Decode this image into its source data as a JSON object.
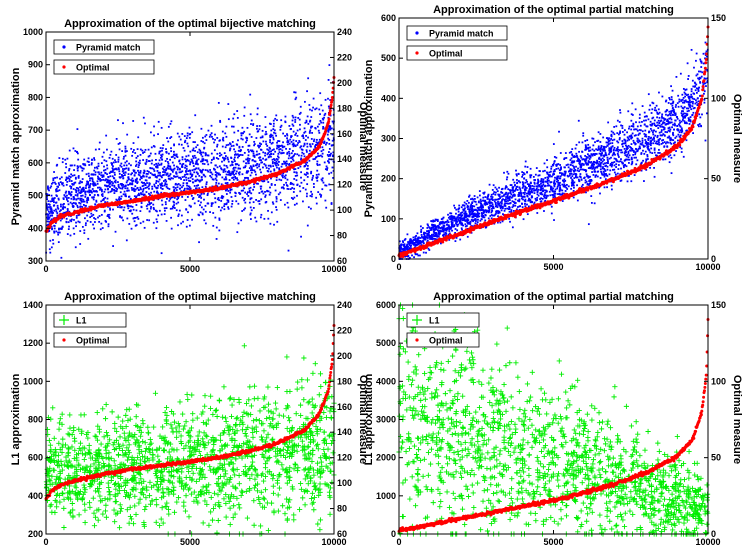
{
  "chart_data": [
    {
      "type": "scatter",
      "title": "Approximation of the optimal bijective matching",
      "xlabel": "",
      "ylabel": "Pyramid match approximation",
      "y2label": "Optimal measure",
      "xlim": [
        0,
        10000
      ],
      "ylim": [
        300,
        1000
      ],
      "y2lim": [
        60,
        240
      ],
      "x_ticks": [
        "0",
        "5000",
        "10000"
      ],
      "y_ticks": [
        "300",
        "400",
        "500",
        "600",
        "700",
        "800",
        "900",
        "1000"
      ],
      "y2_ticks": [
        "60",
        "80",
        "100",
        "120",
        "140",
        "160",
        "180",
        "200",
        "220",
        "240"
      ],
      "legend_position": "top-left",
      "legend": [
        "Pyramid match",
        "Optimal"
      ],
      "series": [
        {
          "name": "Pyramid match",
          "axis": "left",
          "color": "#0000ff",
          "marker": "dot",
          "points": [
            [
              0,
              450
            ],
            [
              1000,
              510
            ],
            [
              2000,
              525
            ],
            [
              3000,
              540
            ],
            [
              4000,
              550
            ],
            [
              5000,
              560
            ],
            [
              6000,
              570
            ],
            [
              7000,
              585
            ],
            [
              8000,
              600
            ],
            [
              9000,
              630
            ],
            [
              10000,
              690
            ]
          ],
          "spread": [
            [
              0,
              55
            ],
            [
              5000,
              70
            ],
            [
              10000,
              85
            ]
          ]
        },
        {
          "name": "Optimal",
          "axis": "right",
          "color": "#ff0000",
          "marker": "dot",
          "points": [
            [
              0,
              83
            ],
            [
              200,
              90
            ],
            [
              500,
              95
            ],
            [
              1000,
              98
            ],
            [
              2000,
              104
            ],
            [
              3000,
              107
            ],
            [
              4000,
              111
            ],
            [
              5000,
              114
            ],
            [
              6000,
              117
            ],
            [
              7000,
              122
            ],
            [
              8000,
              128
            ],
            [
              9000,
              139
            ],
            [
              9500,
              150
            ],
            [
              9800,
              168
            ],
            [
              9950,
              190
            ],
            [
              10000,
              205
            ]
          ]
        }
      ]
    },
    {
      "type": "scatter",
      "title": "Approximation of the optimal partial matching",
      "xlabel": "",
      "ylabel": "Pyramid match approximation",
      "y2label": "Optimal measure",
      "xlim": [
        0,
        10000
      ],
      "ylim": [
        0,
        600
      ],
      "y2lim": [
        0,
        150
      ],
      "x_ticks": [
        "0",
        "5000",
        "10000"
      ],
      "y_ticks": [
        "0",
        "100",
        "200",
        "300",
        "400",
        "500",
        "600"
      ],
      "y2_ticks": [
        "0",
        "50",
        "100",
        "150"
      ],
      "legend_position": "top-left",
      "legend": [
        "Pyramid match",
        "Optimal"
      ],
      "series": [
        {
          "name": "Pyramid match",
          "axis": "left",
          "color": "#0000ff",
          "marker": "dot",
          "points": [
            [
              0,
              15
            ],
            [
              1000,
              60
            ],
            [
              2000,
              100
            ],
            [
              3000,
              135
            ],
            [
              4000,
              165
            ],
            [
              5000,
              195
            ],
            [
              6000,
              230
            ],
            [
              7000,
              265
            ],
            [
              8000,
              300
            ],
            [
              9000,
              345
            ],
            [
              9700,
              410
            ],
            [
              10000,
              470
            ]
          ],
          "spread": [
            [
              0,
              12
            ],
            [
              5000,
              30
            ],
            [
              10000,
              45
            ]
          ]
        },
        {
          "name": "Optimal",
          "axis": "right",
          "color": "#ff0000",
          "marker": "dot",
          "points": [
            [
              0,
              2
            ],
            [
              1000,
              9
            ],
            [
              2000,
              16
            ],
            [
              3000,
              23
            ],
            [
              4000,
              30
            ],
            [
              5000,
              36
            ],
            [
              6000,
              43
            ],
            [
              7000,
              50
            ],
            [
              8000,
              58
            ],
            [
              9000,
              70
            ],
            [
              9500,
              82
            ],
            [
              9800,
              100
            ],
            [
              9950,
              125
            ],
            [
              10000,
              145
            ]
          ]
        }
      ]
    },
    {
      "type": "scatter",
      "title": "Approximation of the optimal bijective matching",
      "xlabel": "",
      "ylabel": "L1 approximation",
      "y2label": "Optimal measure",
      "xlim": [
        0,
        10000
      ],
      "ylim": [
        200,
        1400
      ],
      "y2lim": [
        60,
        240
      ],
      "x_ticks": [
        "0",
        "5000",
        "10000"
      ],
      "y_ticks": [
        "200",
        "400",
        "600",
        "800",
        "1000",
        "1200",
        "1400"
      ],
      "y2_ticks": [
        "60",
        "80",
        "100",
        "120",
        "140",
        "160",
        "180",
        "200",
        "220",
        "240"
      ],
      "legend_position": "top-left",
      "legend": [
        "L1",
        "Optimal"
      ],
      "series": [
        {
          "name": "L1",
          "axis": "left",
          "color": "#00ee00",
          "marker": "plus",
          "points": [
            [
              0,
              520
            ],
            [
              2000,
              545
            ],
            [
              4000,
              560
            ],
            [
              6000,
              580
            ],
            [
              8000,
              610
            ],
            [
              9500,
              660
            ],
            [
              10000,
              740
            ]
          ],
          "spread": [
            [
              0,
              120
            ],
            [
              5000,
              160
            ],
            [
              10000,
              190
            ]
          ]
        },
        {
          "name": "Optimal",
          "axis": "right",
          "color": "#ff0000",
          "marker": "dot",
          "points": [
            [
              0,
              88
            ],
            [
              200,
              94
            ],
            [
              500,
              98
            ],
            [
              1000,
              102
            ],
            [
              2000,
              107
            ],
            [
              3000,
              111
            ],
            [
              4000,
              114
            ],
            [
              5000,
              117
            ],
            [
              6000,
              120
            ],
            [
              7000,
              125
            ],
            [
              8000,
              131
            ],
            [
              9000,
              142
            ],
            [
              9500,
              155
            ],
            [
              9800,
              172
            ],
            [
              9950,
              198
            ],
            [
              10000,
              224
            ]
          ]
        }
      ]
    },
    {
      "type": "scatter",
      "title": "Approximation of the optimal partial matching",
      "xlabel": "",
      "ylabel": "L1 approximation",
      "y2label": "Optimal measure",
      "xlim": [
        0,
        10000
      ],
      "ylim": [
        0,
        6000
      ],
      "y2lim": [
        0,
        150
      ],
      "x_ticks": [
        "0",
        "5000",
        "10000"
      ],
      "y_ticks": [
        "0",
        "1000",
        "2000",
        "3000",
        "4000",
        "5000",
        "6000"
      ],
      "y2_ticks": [
        "0",
        "50",
        "100",
        "150"
      ],
      "legend_position": "top-left",
      "legend": [
        "L1",
        "Optimal"
      ],
      "series": [
        {
          "name": "L1",
          "axis": "left",
          "color": "#00ee00",
          "marker": "plus",
          "points": [
            [
              0,
              3200
            ],
            [
              2000,
              2700
            ],
            [
              4000,
              2200
            ],
            [
              6000,
              1700
            ],
            [
              8000,
              1100
            ],
            [
              10000,
              500
            ]
          ],
          "spread": [
            [
              0,
              1500
            ],
            [
              5000,
              1100
            ],
            [
              10000,
              500
            ]
          ]
        },
        {
          "name": "Optimal",
          "axis": "right",
          "color": "#ff0000",
          "marker": "dot",
          "points": [
            [
              0,
              2
            ],
            [
              2000,
              10
            ],
            [
              4000,
              18
            ],
            [
              5000,
              22
            ],
            [
              6000,
              27
            ],
            [
              7000,
              33
            ],
            [
              8000,
              40
            ],
            [
              9000,
              51
            ],
            [
              9500,
              62
            ],
            [
              9800,
              80
            ],
            [
              9950,
              105
            ],
            [
              10000,
              140
            ]
          ]
        }
      ]
    }
  ]
}
